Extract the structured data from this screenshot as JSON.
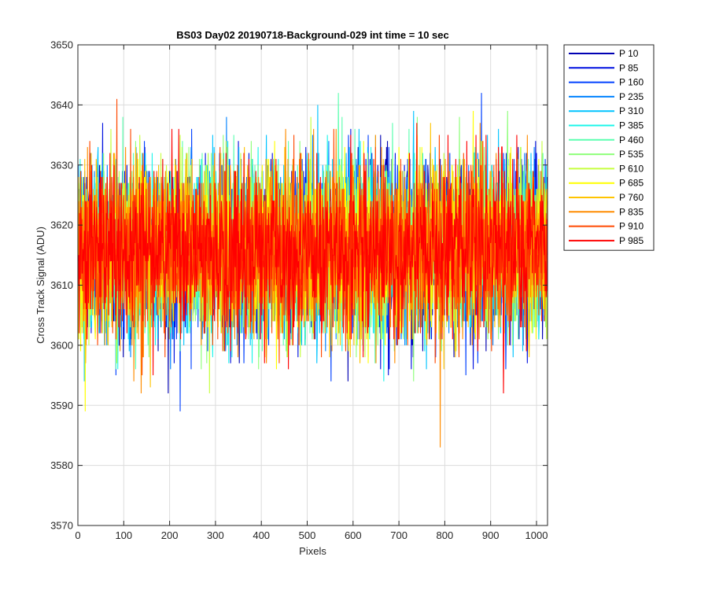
{
  "chart_data": {
    "type": "line",
    "title": "BS03 Day02 20190718-Background-029 int time = 10 sec",
    "xlabel": "Pixels",
    "ylabel": "Cross Track Signal (ADU)",
    "xlim": [
      0,
      1024
    ],
    "ylim": [
      3570,
      3650
    ],
    "xticks": [
      "0",
      "100",
      "200",
      "300",
      "400",
      "500",
      "600",
      "700",
      "800",
      "900",
      "1000"
    ],
    "yticks": [
      "3570",
      "3580",
      "3590",
      "3600",
      "3610",
      "3620",
      "3630",
      "3640",
      "3650"
    ],
    "grid": true,
    "legend_position": "outside-top-right",
    "n_points": 1024,
    "signal_mean": 3616,
    "noise_sd": 7,
    "series": [
      {
        "name": "P 10",
        "color": "#0000b3"
      },
      {
        "name": "P 85",
        "color": "#0011e0"
      },
      {
        "name": "P 160",
        "color": "#0040ff"
      },
      {
        "name": "P 235",
        "color": "#0082ff"
      },
      {
        "name": "P 310",
        "color": "#00c4ff"
      },
      {
        "name": "P 385",
        "color": "#1cf5ea"
      },
      {
        "name": "P 460",
        "color": "#5cffb0"
      },
      {
        "name": "P 535",
        "color": "#8eff7a"
      },
      {
        "name": "P 610",
        "color": "#c6ff3f"
      },
      {
        "name": "P 685",
        "color": "#ffff00"
      },
      {
        "name": "P 760",
        "color": "#ffc400"
      },
      {
        "name": "P 835",
        "color": "#ff8c00"
      },
      {
        "name": "P 910",
        "color": "#ff4800"
      },
      {
        "name": "P 985",
        "color": "#ff0000"
      }
    ]
  }
}
